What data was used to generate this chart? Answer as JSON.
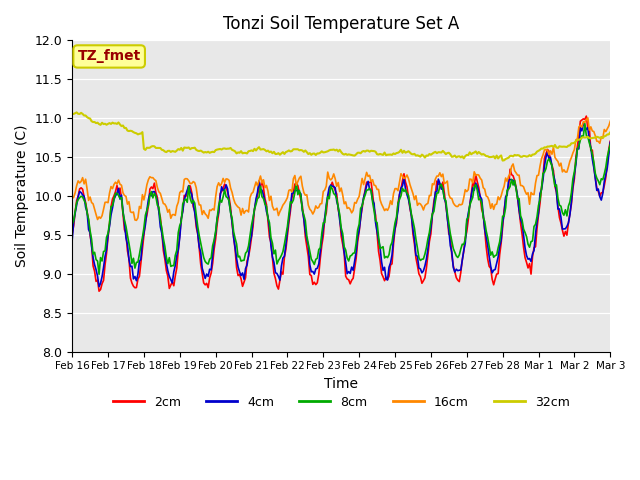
{
  "title": "Tonzi Soil Temperature Set A",
  "xlabel": "Time",
  "ylabel": "Soil Temperature (C)",
  "ylim": [
    8.0,
    12.0
  ],
  "annotation_text": "TZ_fmet",
  "annotation_bg": "#FFFF99",
  "annotation_border": "#CCCC00",
  "annotation_text_color": "#990000",
  "bg_color": "#E8E8E8",
  "line_colors": {
    "2cm": "#FF0000",
    "4cm": "#0000CC",
    "8cm": "#00AA00",
    "16cm": "#FF8800",
    "32cm": "#CCCC00"
  },
  "x_tick_labels": [
    "Feb 16",
    "Feb 17",
    "Feb 18",
    "Feb 19",
    "Feb 20",
    "Feb 21",
    "Feb 22",
    "Feb 23",
    "Feb 24",
    "Feb 25",
    "Feb 26",
    "Feb 27",
    "Feb 28",
    "Mar 1",
    "Mar 2",
    "Mar 3"
  ],
  "n_ticks": 16
}
